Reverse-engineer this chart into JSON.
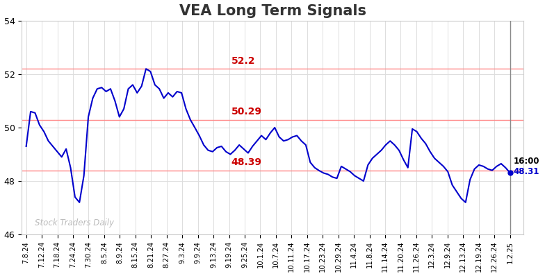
{
  "title": "VEA Long Term Signals",
  "title_color": "#333333",
  "title_fontsize": 15,
  "ylim": [
    46,
    54
  ],
  "yticks": [
    46,
    48,
    50,
    52,
    54
  ],
  "line_color": "#0000cc",
  "line_width": 1.5,
  "hline_high": 52.2,
  "hline_mid": 50.29,
  "hline_low": 48.39,
  "hline_color": "#ff8888",
  "annotation_high": "52.2",
  "annotation_mid": "50.29",
  "annotation_low": "48.39",
  "annotation_color": "#cc0000",
  "last_price": 48.31,
  "last_time": "16:00",
  "last_color": "#0000cc",
  "watermark": "Stock Traders Daily",
  "watermark_color": "#bbbbbb",
  "bg_color": "#ffffff",
  "grid_color": "#dddddd",
  "xtick_labels": [
    "7.8.24",
    "7.12.24",
    "7.18.24",
    "7.24.24",
    "7.30.24",
    "8.5.24",
    "8.9.24",
    "8.15.24",
    "8.21.24",
    "8.27.24",
    "9.3.24",
    "9.9.24",
    "9.13.24",
    "9.19.24",
    "9.25.24",
    "10.1.24",
    "10.7.24",
    "10.11.24",
    "10.17.24",
    "10.23.24",
    "10.29.24",
    "11.4.24",
    "11.8.24",
    "11.14.24",
    "11.20.24",
    "11.26.24",
    "12.3.24",
    "12.9.24",
    "12.13.24",
    "12.19.24",
    "12.26.24",
    "1.2.25"
  ],
  "prices": [
    49.3,
    50.6,
    50.55,
    50.1,
    49.85,
    49.5,
    49.3,
    49.1,
    48.9,
    49.2,
    48.5,
    47.4,
    47.2,
    48.2,
    50.4,
    51.1,
    51.45,
    51.5,
    51.35,
    51.45,
    51.0,
    50.4,
    50.7,
    51.45,
    51.6,
    51.3,
    51.55,
    52.2,
    52.1,
    51.6,
    51.45,
    51.1,
    51.3,
    51.15,
    51.35,
    51.3,
    50.7,
    50.29,
    50.0,
    49.7,
    49.35,
    49.15,
    49.1,
    49.25,
    49.3,
    49.1,
    49.0,
    49.15,
    49.35,
    49.2,
    49.05,
    49.3,
    49.5,
    49.7,
    49.55,
    49.8,
    50.0,
    49.65,
    49.5,
    49.55,
    49.65,
    49.7,
    49.5,
    49.35,
    48.7,
    48.5,
    48.39,
    48.3,
    48.25,
    48.15,
    48.1,
    48.55,
    48.45,
    48.35,
    48.2,
    48.1,
    48.0,
    48.6,
    48.85,
    49.0,
    49.15,
    49.35,
    49.5,
    49.35,
    49.15,
    48.8,
    48.5,
    49.95,
    49.85,
    49.6,
    49.4,
    49.1,
    48.85,
    48.7,
    48.55,
    48.35,
    47.85,
    47.6,
    47.35,
    47.2,
    48.05,
    48.45,
    48.6,
    48.55,
    48.45,
    48.4,
    48.55,
    48.65,
    48.5,
    48.31
  ]
}
